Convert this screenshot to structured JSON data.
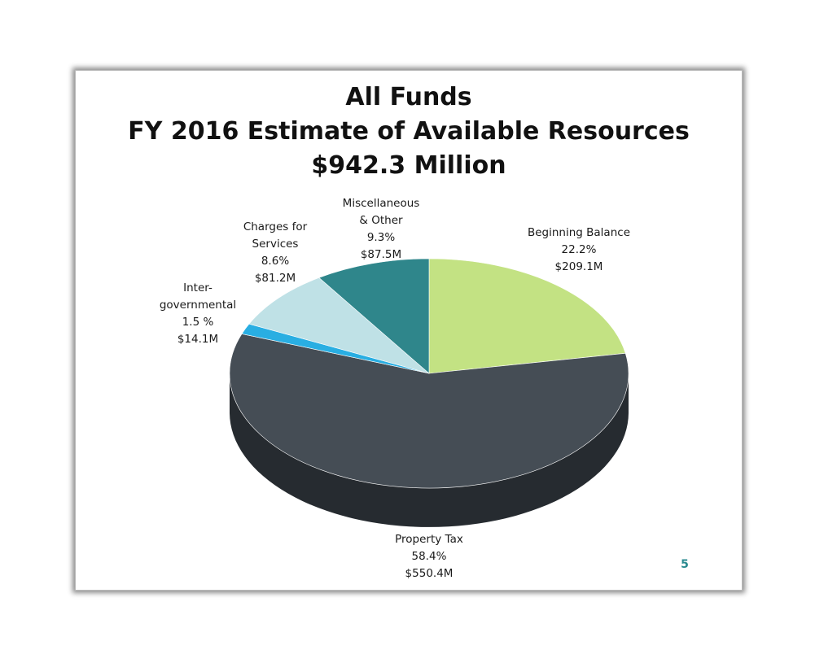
{
  "slide": {
    "title_lines": [
      "All Funds",
      "FY 2016 Estimate of Available Resources",
      "$942.3 Million"
    ],
    "page_number": "5"
  },
  "chart_data": {
    "type": "pie",
    "title": "All Funds FY 2016 Estimate of Available Resources $942.3 Million",
    "total": "$942.3 Million",
    "slices": [
      {
        "label_lines": [
          "Beginning Balance",
          "22.2%",
          "$209.1M"
        ],
        "name": "Beginning Balance",
        "percent": 22.2,
        "value_millions": 209.1,
        "color": "#c3e283",
        "side_color": "#9ab566"
      },
      {
        "label_lines": [
          "Property Tax",
          "58.4%",
          "$550.4M"
        ],
        "name": "Property Tax",
        "percent": 58.4,
        "value_millions": 550.4,
        "color": "#454d55",
        "side_color": "#2c3237"
      },
      {
        "label_lines": [
          "Inter-",
          "governmental",
          "1.5 %",
          "$14.1M"
        ],
        "name": "Inter-governmental",
        "percent": 1.5,
        "value_millions": 14.1,
        "color": "#29aee2",
        "side_color": "#1b80a8"
      },
      {
        "label_lines": [
          "Charges for",
          "Services",
          "8.6%",
          "$81.2M"
        ],
        "name": "Charges for Services",
        "percent": 8.6,
        "value_millions": 81.2,
        "color": "#bfe1e6",
        "side_color": "#94b5ba"
      },
      {
        "label_lines": [
          "Miscellaneous",
          "& Other",
          "9.3%",
          "$87.5M"
        ],
        "name": "Miscellaneous & Other",
        "percent": 9.3,
        "value_millions": 87.5,
        "color": "#2f868b",
        "side_color": "#1f6064"
      }
    ]
  }
}
